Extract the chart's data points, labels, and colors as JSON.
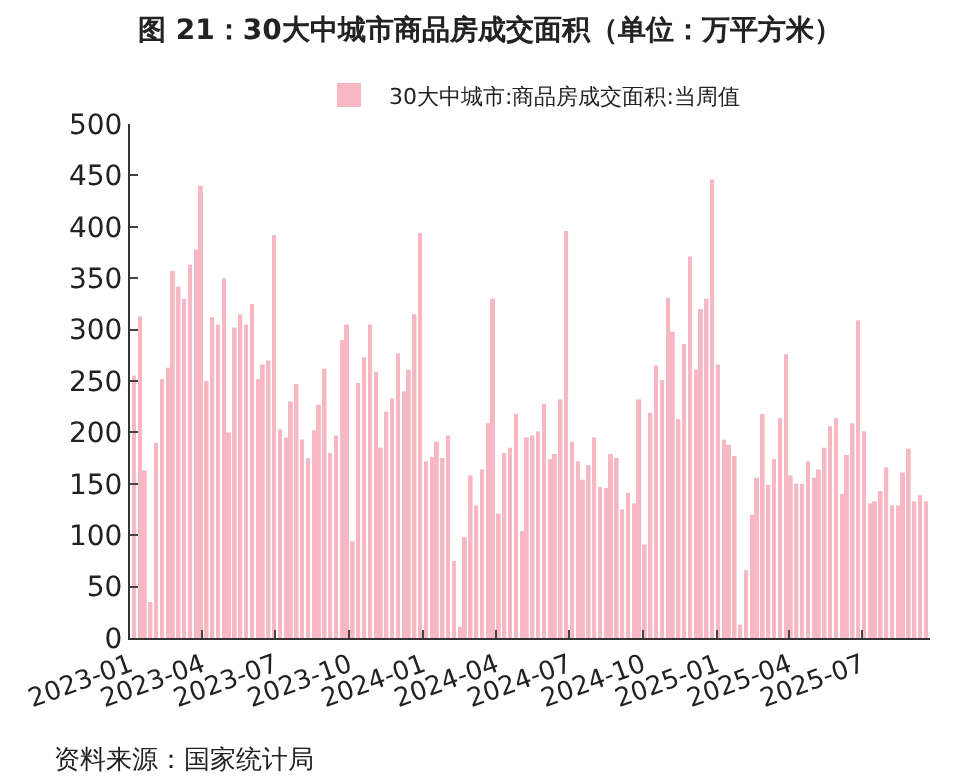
{
  "chart_data": {
    "type": "bar",
    "title": "图 21：30大中城市商品房成交面积（单位：万平方米）",
    "x": [
      "2023-01-06",
      "2023-01-13",
      "2023-01-20",
      "2023-01-27",
      "2023-02-03",
      "2023-02-10",
      "2023-02-17",
      "2023-02-24",
      "2023-03-03",
      "2023-03-10",
      "2023-03-17",
      "2023-03-24",
      "2023-03-31",
      "2023-04-07",
      "2023-04-14",
      "2023-04-21",
      "2023-04-28",
      "2023-05-05",
      "2023-05-12",
      "2023-05-19",
      "2023-05-26",
      "2023-06-02",
      "2023-06-09",
      "2023-06-16",
      "2023-06-23",
      "2023-06-30",
      "2023-07-07",
      "2023-07-14",
      "2023-07-21",
      "2023-07-28",
      "2023-08-04",
      "2023-08-11",
      "2023-08-18",
      "2023-08-25",
      "2023-09-01",
      "2023-09-08",
      "2023-09-15",
      "2023-09-22",
      "2023-09-29",
      "2023-10-06",
      "2023-10-13",
      "2023-10-20",
      "2023-10-27",
      "2023-11-03",
      "2023-11-10",
      "2023-11-17",
      "2023-11-24",
      "2023-12-01",
      "2023-12-08",
      "2023-12-15",
      "2023-12-22",
      "2023-12-29",
      "2024-01-05",
      "2024-01-12",
      "2024-01-19",
      "2024-01-26",
      "2024-02-02",
      "2024-02-09",
      "2024-02-16",
      "2024-02-23",
      "2024-03-01",
      "2024-03-08",
      "2024-03-15",
      "2024-03-22",
      "2024-03-29",
      "2024-04-05",
      "2024-04-12",
      "2024-04-19",
      "2024-04-26",
      "2024-05-03",
      "2024-05-10",
      "2024-05-17",
      "2024-05-24",
      "2024-05-31",
      "2024-06-07",
      "2024-06-14",
      "2024-06-21",
      "2024-06-28",
      "2024-07-05",
      "2024-07-12",
      "2024-07-19",
      "2024-07-26",
      "2024-08-02",
      "2024-08-09",
      "2024-08-16",
      "2024-08-23",
      "2024-08-30",
      "2024-09-06",
      "2024-09-13",
      "2024-09-20",
      "2024-09-27",
      "2024-10-04",
      "2024-10-11",
      "2024-10-18",
      "2024-10-25",
      "2024-11-01",
      "2024-11-08",
      "2024-11-15",
      "2024-11-22",
      "2024-11-29",
      "2024-12-06",
      "2024-12-13",
      "2024-12-20",
      "2024-12-27",
      "2025-01-03",
      "2025-01-10",
      "2025-01-17",
      "2025-01-24",
      "2025-01-31",
      "2025-02-07",
      "2025-02-14",
      "2025-02-21",
      "2025-02-28",
      "2025-03-07",
      "2025-03-14",
      "2025-03-21",
      "2025-03-28",
      "2025-04-04",
      "2025-04-11",
      "2025-04-18",
      "2025-04-25",
      "2025-05-02",
      "2025-05-09",
      "2025-05-16",
      "2025-05-23",
      "2025-05-30",
      "2025-06-06",
      "2025-06-13",
      "2025-06-20",
      "2025-06-27",
      "2025-07-04",
      "2025-07-11",
      "2025-07-18",
      "2025-07-25",
      "2025-08-01",
      "2025-08-08",
      "2025-08-15",
      "2025-08-22",
      "2025-08-29",
      "2025-09-05",
      "2025-09-12",
      "2025-09-19"
    ],
    "series": [
      {
        "name": "30大中城市:商品房成交面积:当周值",
        "color": "#f7b8c4",
        "values": [
          255,
          313,
          163,
          35,
          190,
          252,
          263,
          357,
          342,
          330,
          363,
          378,
          440,
          250,
          312,
          305,
          350,
          200,
          302,
          315,
          305,
          325,
          252,
          266,
          270,
          392,
          203,
          195,
          230,
          247,
          193,
          175,
          202,
          227,
          262,
          180,
          197,
          290,
          305,
          94,
          248,
          273,
          305,
          259,
          185,
          220,
          233,
          277,
          240,
          261,
          315,
          394,
          172,
          176,
          191,
          175,
          197,
          75,
          11,
          98,
          158,
          129,
          164,
          209,
          330,
          121,
          180,
          185,
          218,
          104,
          195,
          197,
          201,
          228,
          174,
          179,
          232,
          396,
          191,
          172,
          154,
          168,
          195,
          147,
          146,
          179,
          175,
          125,
          141,
          131,
          232,
          91,
          219,
          265,
          251,
          331,
          298,
          213,
          286,
          371,
          261,
          320,
          330,
          446,
          266,
          193,
          188,
          177,
          13,
          66,
          120,
          156,
          218,
          149,
          174,
          214,
          276,
          158,
          150,
          150,
          172,
          156,
          164,
          185,
          206,
          214,
          140,
          178,
          209,
          309,
          201,
          131,
          133,
          143,
          166,
          129,
          129,
          161,
          184,
          133,
          139,
          133
        ]
      }
    ],
    "xlim": [
      "2023-01-01",
      "2025-09-24"
    ],
    "xticks": [
      "2023-01",
      "2023-04",
      "2023-07",
      "2023-10",
      "2024-01",
      "2024-04",
      "2024-07",
      "2024-10",
      "2025-01",
      "2025-04",
      "2025-07"
    ],
    "ylim": [
      0,
      500
    ],
    "yticks": [
      0,
      50,
      100,
      150,
      200,
      250,
      300,
      350,
      400,
      450,
      500
    ],
    "legend": "top",
    "annotations": [
      "资料来源：国家统计局"
    ]
  }
}
